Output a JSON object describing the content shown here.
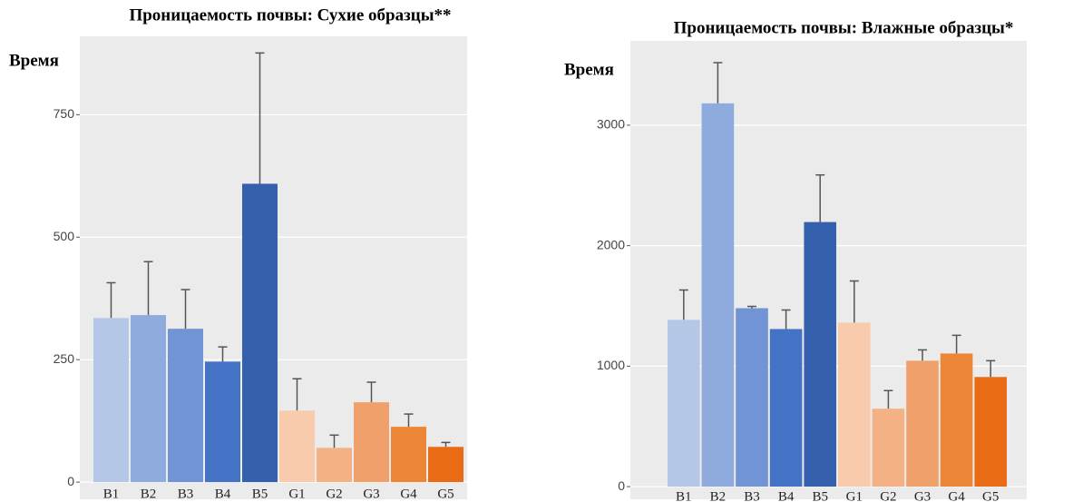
{
  "chart_data": [
    {
      "type": "bar",
      "title": "Проницаемость почвы: Сухие образцы**",
      "y_label": "Время",
      "categories": [
        "B1",
        "B2",
        "B3",
        "B4",
        "B5",
        "G1",
        "G2",
        "G3",
        "G4",
        "G5"
      ],
      "values": [
        335,
        341,
        313,
        246,
        609,
        146,
        70,
        163,
        113,
        72
      ],
      "errors": [
        72,
        109,
        80,
        30,
        267,
        65,
        26,
        41,
        26,
        9
      ],
      "colors": [
        "#b4c7e7",
        "#8faadc",
        "#7094d4",
        "#4472c4",
        "#3460ad",
        "#f8cbad",
        "#f4b183",
        "#f0a06a",
        "#ed8537",
        "#ea6b15"
      ],
      "ylim": [
        -35,
        910
      ],
      "yticks": [
        0,
        250,
        500,
        750
      ],
      "grid": true
    },
    {
      "type": "bar",
      "title": "Проницаемость почвы: Влажные образцы*",
      "y_label": "Время",
      "categories": [
        "B1",
        "B2",
        "B3",
        "B4",
        "B5",
        "G1",
        "G2",
        "G3",
        "G4",
        "G5"
      ],
      "values": [
        1384,
        3181,
        1481,
        1308,
        2196,
        1361,
        647,
        1045,
        1105,
        910
      ],
      "errors": [
        248,
        338,
        15,
        158,
        391,
        346,
        150,
        90,
        151,
        135
      ],
      "colors": [
        "#b4c7e7",
        "#8faadc",
        "#7094d4",
        "#4472c4",
        "#3460ad",
        "#f8cbad",
        "#f4b183",
        "#f0a06a",
        "#ed8537",
        "#ea6b15"
      ],
      "ylim": [
        -105,
        3700
      ],
      "yticks": [
        0,
        1000,
        2000,
        3000
      ],
      "grid": true
    }
  ]
}
